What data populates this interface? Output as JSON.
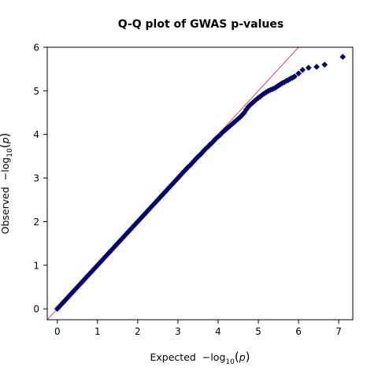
{
  "chart_data": {
    "type": "scatter",
    "title": "Q-Q plot of GWAS p-values",
    "xlabel": "Expected",
    "ylabel": "Observed",
    "axis_math": {
      "prefix": "−log",
      "sub": "10",
      "paren_open": "(",
      "var": "p",
      "paren_close": ")"
    },
    "xlim": [
      -0.25,
      7.35
    ],
    "ylim": [
      -0.25,
      6.0
    ],
    "xticks": [
      0,
      1,
      2,
      3,
      4,
      5,
      6,
      7
    ],
    "yticks": [
      0,
      1,
      2,
      3,
      4,
      5,
      6
    ],
    "grid": false,
    "reference_line": {
      "slope": 1,
      "intercept": 0,
      "color": "#e03030"
    },
    "marker_color": "#00007f",
    "series": [
      {
        "points": [
          [
            0.0,
            0.0
          ],
          [
            0.05,
            0.05
          ],
          [
            0.1,
            0.1
          ],
          [
            0.15,
            0.15
          ],
          [
            0.2,
            0.2
          ],
          [
            0.25,
            0.25
          ],
          [
            0.3,
            0.3
          ],
          [
            0.35,
            0.35
          ],
          [
            0.4,
            0.4
          ],
          [
            0.45,
            0.45
          ],
          [
            0.5,
            0.5
          ],
          [
            0.55,
            0.55
          ],
          [
            0.6,
            0.6
          ],
          [
            0.65,
            0.65
          ],
          [
            0.7,
            0.7
          ],
          [
            0.75,
            0.75
          ],
          [
            0.8,
            0.8
          ],
          [
            0.85,
            0.85
          ],
          [
            0.9,
            0.9
          ],
          [
            0.95,
            0.95
          ],
          [
            1.0,
            1.0
          ],
          [
            1.05,
            1.05
          ],
          [
            1.1,
            1.1
          ],
          [
            1.15,
            1.15
          ],
          [
            1.2,
            1.2
          ],
          [
            1.25,
            1.25
          ],
          [
            1.3,
            1.3
          ],
          [
            1.35,
            1.35
          ],
          [
            1.4,
            1.4
          ],
          [
            1.45,
            1.45
          ],
          [
            1.5,
            1.5
          ],
          [
            1.55,
            1.55
          ],
          [
            1.6,
            1.6
          ],
          [
            1.65,
            1.65
          ],
          [
            1.7,
            1.7
          ],
          [
            1.75,
            1.75
          ],
          [
            1.8,
            1.8
          ],
          [
            1.85,
            1.85
          ],
          [
            1.9,
            1.9
          ],
          [
            1.95,
            1.95
          ],
          [
            2.0,
            2.0
          ],
          [
            2.05,
            2.05
          ],
          [
            2.1,
            2.1
          ],
          [
            2.15,
            2.15
          ],
          [
            2.2,
            2.2
          ],
          [
            2.25,
            2.25
          ],
          [
            2.3,
            2.3
          ],
          [
            2.35,
            2.35
          ],
          [
            2.4,
            2.4
          ],
          [
            2.45,
            2.45
          ],
          [
            2.5,
            2.5
          ],
          [
            2.55,
            2.55
          ],
          [
            2.6,
            2.6
          ],
          [
            2.65,
            2.65
          ],
          [
            2.7,
            2.7
          ],
          [
            2.75,
            2.75
          ],
          [
            2.8,
            2.8
          ],
          [
            2.85,
            2.85
          ],
          [
            2.9,
            2.9
          ],
          [
            2.95,
            2.95
          ],
          [
            3.0,
            3.0
          ],
          [
            3.05,
            3.05
          ],
          [
            3.1,
            3.1
          ],
          [
            3.15,
            3.15
          ],
          [
            3.2,
            3.2
          ],
          [
            3.25,
            3.25
          ],
          [
            3.3,
            3.29
          ],
          [
            3.35,
            3.34
          ],
          [
            3.4,
            3.39
          ],
          [
            3.45,
            3.44
          ],
          [
            3.5,
            3.49
          ],
          [
            3.55,
            3.53
          ],
          [
            3.6,
            3.58
          ],
          [
            3.65,
            3.63
          ],
          [
            3.7,
            3.68
          ],
          [
            3.75,
            3.72
          ],
          [
            3.8,
            3.77
          ],
          [
            3.85,
            3.81
          ],
          [
            3.9,
            3.86
          ],
          [
            3.95,
            3.91
          ],
          [
            4.0,
            3.95
          ],
          [
            4.05,
            3.99
          ],
          [
            4.1,
            4.04
          ],
          [
            4.15,
            4.08
          ],
          [
            4.2,
            4.12
          ],
          [
            4.25,
            4.16
          ],
          [
            4.3,
            4.2
          ],
          [
            4.35,
            4.24
          ],
          [
            4.4,
            4.28
          ],
          [
            4.45,
            4.32
          ],
          [
            4.5,
            4.36
          ],
          [
            4.55,
            4.4
          ],
          [
            4.6,
            4.45
          ],
          [
            4.65,
            4.5
          ],
          [
            4.7,
            4.57
          ],
          [
            4.75,
            4.63
          ],
          [
            4.8,
            4.68
          ],
          [
            4.85,
            4.72
          ],
          [
            4.9,
            4.76
          ],
          [
            4.95,
            4.8
          ],
          [
            5.0,
            4.84
          ],
          [
            5.05,
            4.87
          ],
          [
            5.1,
            4.91
          ],
          [
            5.15,
            4.94
          ],
          [
            5.2,
            4.97
          ],
          [
            5.25,
            5.0
          ],
          [
            5.3,
            5.02
          ],
          [
            5.35,
            5.04
          ],
          [
            5.4,
            5.06
          ],
          [
            5.45,
            5.09
          ],
          [
            5.5,
            5.12
          ],
          [
            5.55,
            5.15
          ],
          [
            5.6,
            5.18
          ],
          [
            5.65,
            5.2
          ],
          [
            5.7,
            5.23
          ],
          [
            5.75,
            5.25
          ],
          [
            5.8,
            5.28
          ],
          [
            5.85,
            5.3
          ],
          [
            5.9,
            5.33
          ],
          [
            6.0,
            5.4
          ],
          [
            6.1,
            5.48
          ],
          [
            6.25,
            5.53
          ],
          [
            6.45,
            5.55
          ],
          [
            6.65,
            5.6
          ],
          [
            7.1,
            5.78
          ]
        ]
      }
    ]
  }
}
